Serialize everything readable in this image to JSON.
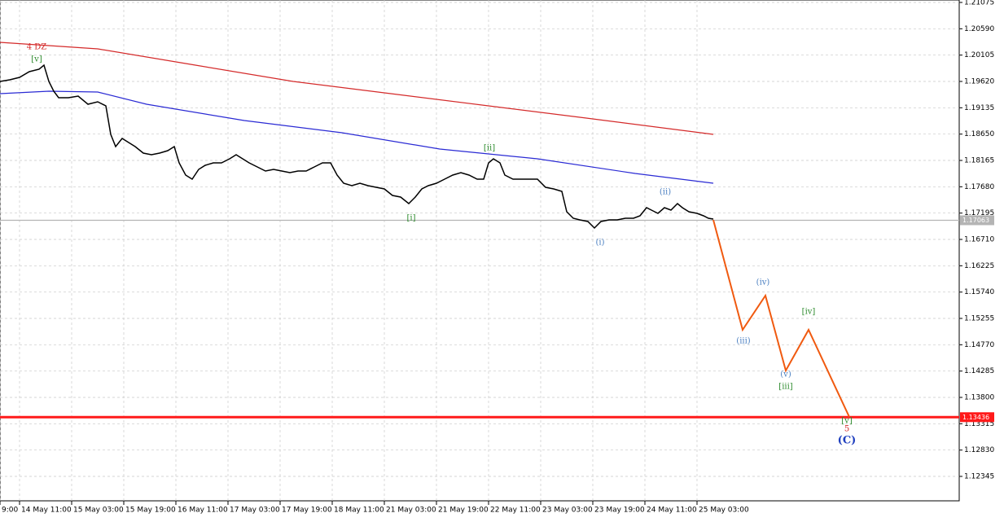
{
  "chart_data": {
    "type": "line",
    "xlim": [
      0,
      294.5
    ],
    "ylim": [
      1.11895,
      1.2112
    ],
    "grid": true,
    "xticks": [
      {
        "value": 0,
        "label": "9:00"
      },
      {
        "value": 6,
        "label": "14 May 11:00"
      },
      {
        "value": 22,
        "label": "15 May 03:00"
      },
      {
        "value": 38,
        "label": "15 May 19:00"
      },
      {
        "value": 54,
        "label": "16 May 11:00"
      },
      {
        "value": 70,
        "label": "17 May 03:00"
      },
      {
        "value": 86,
        "label": "17 May 19:00"
      },
      {
        "value": 102,
        "label": "18 May 11:00"
      },
      {
        "value": 118,
        "label": "21 May 03:00"
      },
      {
        "value": 134,
        "label": "21 May 19:00"
      },
      {
        "value": 150,
        "label": "22 May 11:00"
      },
      {
        "value": 166,
        "label": "23 May 03:00"
      },
      {
        "value": 182,
        "label": "23 May 19:00"
      },
      {
        "value": 198,
        "label": "24 May 11:00"
      },
      {
        "value": 214,
        "label": "25 May 03:00"
      }
    ],
    "yticks": [
      1.21075,
      {
        "value": 1.2059,
        "label": "1.20590"
      },
      1.20105,
      {
        "value": 1.1962,
        "label": "1.19620"
      },
      1.19135,
      {
        "value": 1.1865,
        "label": "1.18650"
      },
      1.18165,
      {
        "value": 1.1768,
        "label": "1.17680"
      },
      1.17195,
      {
        "value": 1.1671,
        "label": "1.16710"
      },
      1.16225,
      {
        "value": 1.1574,
        "label": "1.15740"
      },
      1.15255,
      {
        "value": 1.1477,
        "label": "1.14770"
      },
      1.14285,
      {
        "value": 1.138,
        "label": "1.13800"
      },
      1.13315,
      {
        "value": 1.1283,
        "label": "1.12830"
      },
      1.12345
    ],
    "price": {
      "color": "#000000",
      "x": [
        0,
        3,
        6,
        9,
        12,
        13.5,
        15,
        16.5,
        18,
        21,
        24,
        27,
        30,
        32.5,
        34,
        35.5,
        37.5,
        39.5,
        41.5,
        44,
        46.5,
        49,
        51.5,
        53.5,
        55,
        57,
        59,
        61,
        63,
        65.5,
        68,
        70.5,
        72.5,
        74.5,
        76.5,
        79,
        81.5,
        84,
        86.5,
        89,
        91.5,
        94,
        96.5,
        99,
        101.5,
        103.5,
        105.5,
        108,
        110.5,
        113,
        115.5,
        118,
        120.5,
        123,
        125.5,
        127.5,
        129.5,
        131.5,
        134,
        136.5,
        139,
        141.5,
        144,
        146.5,
        148.5,
        150,
        151.5,
        153.5,
        155,
        157.5,
        160,
        162.5,
        165,
        167.5,
        170,
        172.5,
        174,
        176,
        178,
        180.5,
        182.5,
        184.5,
        187,
        189.5,
        192,
        194.5,
        196.5,
        198.5,
        200,
        202,
        204,
        206,
        208,
        209.5,
        211.5,
        214,
        216,
        217.5,
        219
      ],
      "values": [
        1.1962,
        1.1965,
        1.19695,
        1.198,
        1.19845,
        1.1992,
        1.1962,
        1.1944,
        1.1932,
        1.1932,
        1.1935,
        1.192,
        1.19245,
        1.1917,
        1.18645,
        1.1842,
        1.1857,
        1.18495,
        1.1842,
        1.183,
        1.1827,
        1.183,
        1.18345,
        1.1842,
        1.1812,
        1.17895,
        1.1782,
        1.18,
        1.18075,
        1.1812,
        1.1812,
        1.18195,
        1.1827,
        1.18195,
        1.1812,
        1.18045,
        1.1797,
        1.18,
        1.1797,
        1.1794,
        1.1797,
        1.1797,
        1.18045,
        1.1812,
        1.1812,
        1.17895,
        1.17745,
        1.177,
        1.17745,
        1.177,
        1.1767,
        1.1764,
        1.1752,
        1.1749,
        1.1737,
        1.1749,
        1.1764,
        1.177,
        1.17745,
        1.1782,
        1.17895,
        1.1794,
        1.17895,
        1.1782,
        1.1782,
        1.1812,
        1.18195,
        1.1812,
        1.17895,
        1.1782,
        1.1782,
        1.1782,
        1.1782,
        1.1767,
        1.1764,
        1.17595,
        1.1722,
        1.171,
        1.1707,
        1.1704,
        1.1692,
        1.1704,
        1.1707,
        1.1707,
        1.171,
        1.171,
        1.17145,
        1.17295,
        1.1725,
        1.1719,
        1.17295,
        1.1725,
        1.1737,
        1.17295,
        1.1722,
        1.1719,
        1.17145,
        1.171,
        1.17085
      ]
    },
    "ma_slow": {
      "color": "#d42a2a",
      "x": [
        0,
        30,
        60,
        90,
        120,
        150,
        180,
        219
      ],
      "values": [
        1.2034,
        1.2022,
        1.1992,
        1.1962,
        1.19395,
        1.1917,
        1.18945,
        1.18645
      ]
    },
    "ma_fast": {
      "color": "#2a2ad4",
      "x": [
        0,
        15,
        30,
        45,
        75,
        105,
        135,
        165,
        195,
        219
      ],
      "values": [
        1.19395,
        1.1944,
        1.19425,
        1.192,
        1.189,
        1.18675,
        1.18375,
        1.18195,
        1.17925,
        1.17745
      ]
    },
    "forecast": {
      "color": "#f05a10",
      "x": [
        219,
        228,
        235,
        241.25,
        248.25,
        260.75
      ],
      "values": [
        1.1707,
        1.15045,
        1.15675,
        1.14295,
        1.15045,
        1.1344
      ]
    },
    "levels": [
      {
        "value": 1.17063,
        "color": "#b4b4b4"
      },
      {
        "value": 1.13436,
        "color": "#ff1a1a"
      }
    ],
    "annotations": [
      {
        "text": "4 DZ",
        "x": 11.25,
        "y": 1.2025,
        "color": "#d42a2a"
      },
      {
        "text": "[v]",
        "x": 11.25,
        "y": 1.20025,
        "color": "#2e8b2e"
      },
      {
        "text": "[i]",
        "x": 126.25,
        "y": 1.171,
        "color": "#2e8b2e"
      },
      {
        "text": "[ii]",
        "x": 150.25,
        "y": 1.1839,
        "color": "#2e8b2e"
      },
      {
        "text": "(i)",
        "x": 184.25,
        "y": 1.1665,
        "color": "#4a7fc1"
      },
      {
        "text": "(ii)",
        "x": 204.25,
        "y": 1.1758,
        "color": "#4a7fc1"
      },
      {
        "text": "(iii)",
        "x": 228.25,
        "y": 1.14835,
        "color": "#4a7fc1"
      },
      {
        "text": "(iv)",
        "x": 234.25,
        "y": 1.15915,
        "color": "#4a7fc1"
      },
      {
        "text": "(v)",
        "x": 241.25,
        "y": 1.1422,
        "color": "#4a7fc1"
      },
      {
        "text": "[iii]",
        "x": 241.25,
        "y": 1.13995,
        "color": "#2e8b2e"
      },
      {
        "text": "[iv]",
        "x": 248.25,
        "y": 1.15375,
        "color": "#2e8b2e"
      },
      {
        "text": "[v]",
        "x": 260,
        "y": 1.13365,
        "color": "#2e8b2e"
      },
      {
        "text": "5",
        "x": 260,
        "y": 1.13215,
        "color": "#d42a2a"
      },
      {
        "text": "(C)",
        "x": 260,
        "y": 1.13005,
        "color": "#1f3fbf"
      }
    ]
  }
}
